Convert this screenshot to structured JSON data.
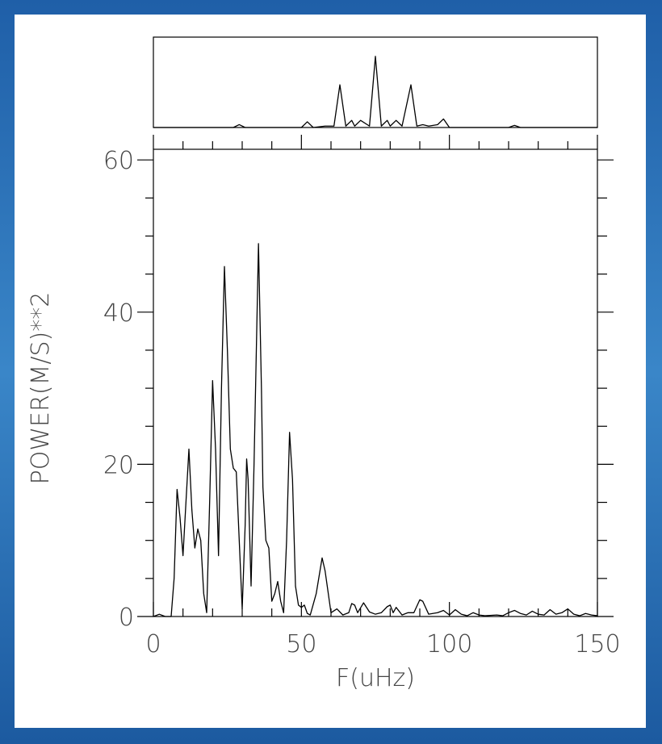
{
  "chart_data": [
    {
      "type": "line",
      "x_label": "F(uHz)",
      "y_label": "POWER(M/S)**2",
      "xlim": [
        0,
        150
      ],
      "xticks": [
        0,
        50,
        100,
        150
      ],
      "ylim": [
        0,
        61.4
      ],
      "yticks": [
        0,
        20,
        40,
        60
      ],
      "color": "#000000",
      "x": [
        0,
        2,
        4,
        6,
        7,
        8,
        9,
        10,
        11,
        12,
        13,
        14,
        15,
        16,
        17,
        18,
        19,
        20,
        21,
        22,
        23,
        24,
        25,
        26,
        27,
        28,
        29,
        30,
        31,
        31.5,
        32,
        33,
        34,
        35.5,
        36.5,
        37,
        38,
        39,
        40,
        41,
        42,
        43,
        44,
        45,
        46,
        47,
        48,
        49,
        50,
        51,
        52,
        53,
        55,
        57,
        58,
        60,
        62,
        64,
        66,
        67,
        68,
        69,
        71,
        73,
        75,
        77,
        79,
        80,
        81,
        82,
        84,
        86,
        88,
        90,
        91,
        93,
        96,
        98,
        100,
        102,
        104,
        106,
        108,
        110,
        112,
        116,
        118,
        120,
        122,
        124,
        126,
        128,
        130,
        132,
        134,
        136,
        138,
        140,
        142,
        144,
        146,
        148,
        150
      ],
      "values": [
        0,
        0.3,
        0,
        0,
        5,
        16.7,
        13,
        8,
        15,
        22,
        14,
        9,
        11.5,
        10,
        3,
        0.5,
        15,
        31,
        22,
        8,
        30,
        46,
        35,
        22,
        19.5,
        19,
        10,
        1,
        12,
        20.7,
        18,
        4,
        20,
        49,
        30,
        17,
        10,
        9,
        2,
        3,
        4.6,
        2,
        0.5,
        10,
        24.2,
        18,
        4,
        1.5,
        1.2,
        1.5,
        0.4,
        0.2,
        3,
        7.7,
        6,
        0.5,
        1,
        0.2,
        0.5,
        1.7,
        1.5,
        0.5,
        1.8,
        0.6,
        0.3,
        0.5,
        1.3,
        1.5,
        0.5,
        1.2,
        0.2,
        0.5,
        0.5,
        2.2,
        2,
        0.3,
        0.5,
        0.8,
        0.2,
        0.9,
        0.3,
        0.1,
        0.5,
        0.2,
        0.1,
        0.2,
        0.1,
        0.5,
        0.8,
        0.4,
        0.2,
        0.7,
        0.3,
        0.2,
        0.9,
        0.3,
        0.5,
        1,
        0.3,
        0.1,
        0.4,
        0.2,
        0.1
      ]
    },
    {
      "type": "line",
      "xlim": [
        0,
        150
      ],
      "ylim": [
        0,
        1.27
      ],
      "color": "#000000",
      "x": [
        0,
        5,
        10,
        20,
        27,
        29,
        31,
        40,
        50,
        52,
        54,
        58,
        61,
        63,
        65,
        67,
        68,
        70,
        73,
        75,
        77,
        79,
        80,
        82,
        84,
        87,
        89,
        91,
        93,
        96,
        98,
        100,
        110,
        120,
        122,
        124,
        130,
        140,
        150
      ],
      "values": [
        0,
        0,
        0,
        0,
        0,
        0.04,
        0,
        0,
        0,
        0.08,
        0,
        0.02,
        0.02,
        0.6,
        0.02,
        0.1,
        0.02,
        0.1,
        0.02,
        1.0,
        0.02,
        0.1,
        0.02,
        0.1,
        0.02,
        0.6,
        0.02,
        0.04,
        0.02,
        0.04,
        0.12,
        0,
        0,
        0,
        0.03,
        0,
        0,
        0,
        0
      ]
    }
  ]
}
